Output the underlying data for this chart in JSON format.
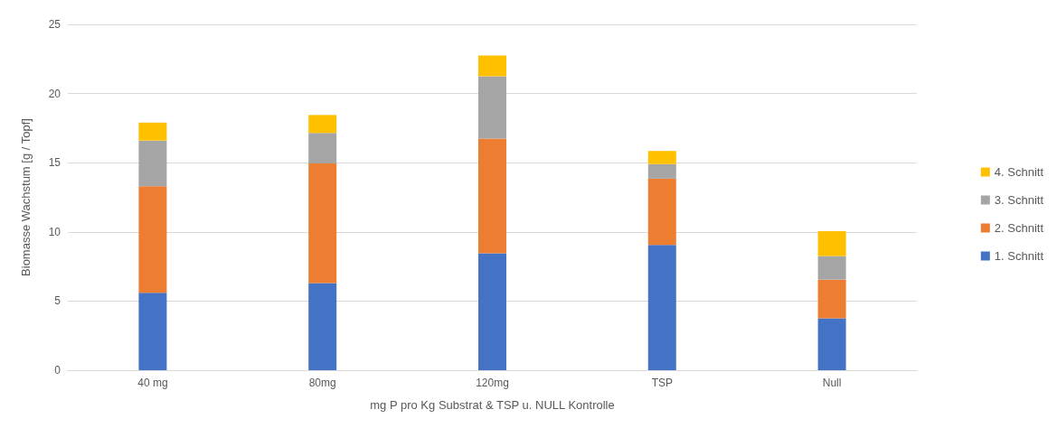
{
  "chart_data": {
    "type": "bar",
    "stacked": true,
    "xlabel": "mg P pro Kg Substrat & TSP u. NULL Kontrolle",
    "ylabel": "Biomasse Wachstum [g / Topf]",
    "categories": [
      "40 mg",
      "80mg",
      "120mg",
      "TSP",
      "Null"
    ],
    "series": [
      {
        "name": "1. Schnitt",
        "color": "#4472c4",
        "values": [
          5.6,
          6.3,
          8.45,
          9.05,
          3.75
        ]
      },
      {
        "name": "2. Schnitt",
        "color": "#ed7d31",
        "values": [
          7.7,
          8.65,
          8.3,
          4.8,
          2.8
        ]
      },
      {
        "name": "3. Schnitt",
        "color": "#a5a5a5",
        "values": [
          3.3,
          2.2,
          4.5,
          1.05,
          1.7
        ]
      },
      {
        "name": "4. Schnitt",
        "color": "#ffc000",
        "values": [
          1.3,
          1.3,
          1.5,
          0.95,
          1.8
        ]
      }
    ],
    "ylim": [
      0,
      25
    ],
    "yticks": [
      0,
      5,
      10,
      15,
      20,
      25
    ],
    "grid": "y",
    "legend": "right"
  }
}
